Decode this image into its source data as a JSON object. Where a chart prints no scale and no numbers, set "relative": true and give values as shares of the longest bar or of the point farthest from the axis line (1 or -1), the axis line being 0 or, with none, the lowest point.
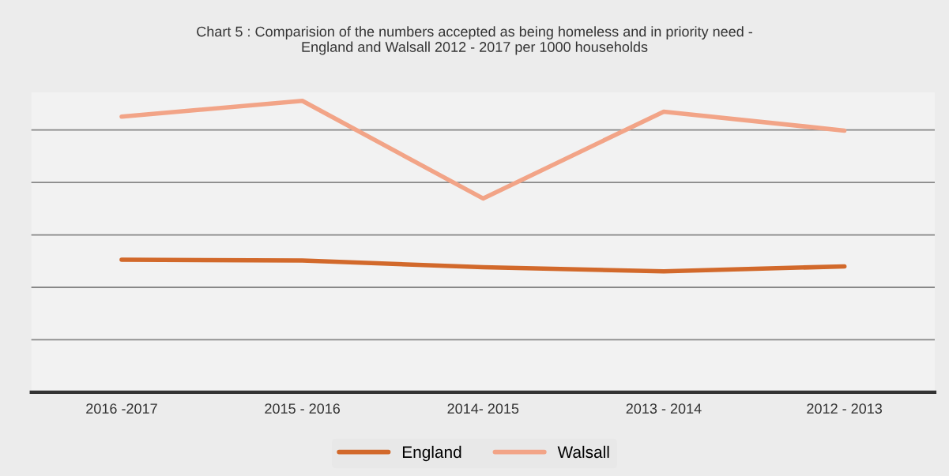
{
  "chart_data": {
    "type": "line",
    "title": "Chart 5 : Comparision of the numbers accepted as being homeless and in priority need -\nEngland and Walsall 2012 - 2017 per 1000 households",
    "categories": [
      "2016 -2017",
      "2015 - 2016",
      "2014- 2015",
      "2013 - 2014",
      "2012 - 2013"
    ],
    "relative": true,
    "grid": "y",
    "legend": "bottom",
    "marker": "none",
    "line_style": "solid",
    "series": [
      {
        "name": "England",
        "color": "#d2692b",
        "values": [
          0.455,
          0.452,
          0.429,
          0.415,
          0.432
        ]
      },
      {
        "name": "Walsall",
        "color": "#f2a487",
        "values": [
          0.946,
          1.0,
          0.665,
          0.963,
          0.898
        ]
      }
    ]
  }
}
